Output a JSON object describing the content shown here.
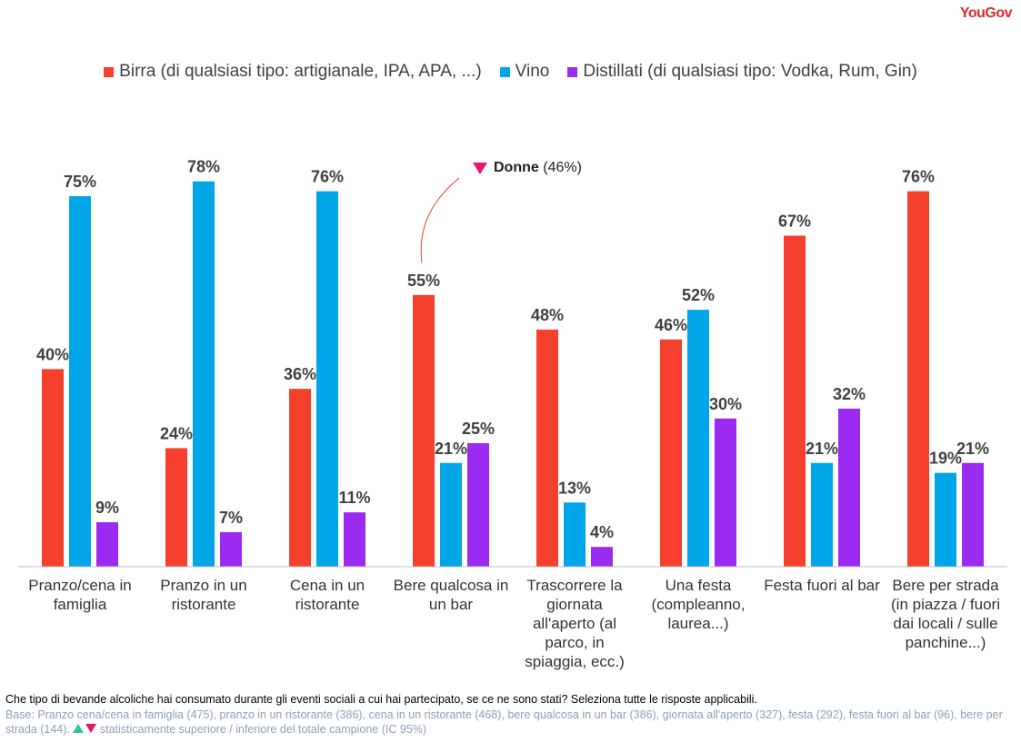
{
  "brand": "YouGov",
  "chart_data": {
    "type": "bar",
    "categories": [
      "Pranzo/cena in famiglia",
      "Pranzo in un ristorante",
      "Cena in un ristorante",
      "Bere qualcosa in un bar",
      "Trascorrere la giornata all'aperto (al parco, in spiaggia, ecc.)",
      "Una festa (compleanno, laurea...)",
      "Festa fuori al bar",
      "Bere per strada (in piazza / fuori dai locali / sulle panchine...)"
    ],
    "series": [
      {
        "name": "Birra (di qualsiasi tipo: artigianale, IPA, APA, ...)",
        "color": "#f4402c",
        "values": [
          40,
          24,
          36,
          55,
          48,
          46,
          67,
          76
        ],
        "value_labels": [
          "40%",
          "24%",
          "36%",
          "55%",
          "48%",
          "46%",
          "67%",
          "76%"
        ]
      },
      {
        "name": "Vino",
        "color": "#00a6e8",
        "values": [
          75,
          78,
          76,
          21,
          13,
          52,
          21,
          19
        ],
        "value_labels": [
          "75%",
          "78%",
          "76%",
          "21%",
          "13%",
          "52%",
          "21%",
          "19%"
        ]
      },
      {
        "name": "Distillati (di qualsiasi tipo: Vodka, Rum, Gin)",
        "color": "#9b2bf0",
        "values": [
          9,
          7,
          11,
          25,
          4,
          30,
          32,
          21
        ],
        "value_labels": [
          "9%",
          "7%",
          "11%",
          "25%",
          "4%",
          "30%",
          "32%",
          "21%"
        ]
      }
    ],
    "ylim": [
      0,
      100
    ],
    "annotation": {
      "label": "Donne",
      "value_label": "(46%)"
    }
  },
  "footer": {
    "question": "Che tipo di bevande alcoliche hai consumato durante gli eventi sociali a cui hai partecipato, se ce ne sono stati? Seleziona tutte le risposte applicabili.",
    "base": "Base: Pranzo cena/cena in famiglia (475), pranzo in un ristorante (386), cena in un ristorante (468), bere qualcosa in un bar (386), giornata all'aperto (327), festa (292), festa fuori al bar (96), bere per strada (144).",
    "significance": "statisticamente superiore / inferiore del totale campione (IC 95%)"
  }
}
